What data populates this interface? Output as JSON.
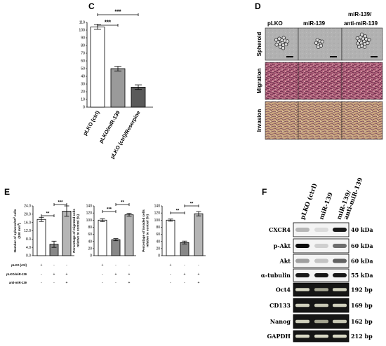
{
  "panels": {
    "C": "C",
    "D": "D",
    "E": "E",
    "F": "F"
  },
  "panel_d": {
    "columns": [
      "pLKO",
      "miR-139",
      "miR-139/",
      "anti-miR-139"
    ],
    "rows": [
      "Spheroid",
      "Migration",
      "Invasion"
    ]
  },
  "panel_e": {
    "condition_labels": [
      "pLKO (ctrl)",
      "pLKO/miR-139",
      "anti-miR-139"
    ],
    "signs": [
      [
        "+",
        "-",
        "-"
      ],
      [
        "-",
        "+",
        "+"
      ],
      [
        "-",
        "-",
        "+"
      ]
    ]
  },
  "panel_f": {
    "lanes": [
      "pLKO (ctrl)",
      "miR-139",
      "miR-139/",
      "anti-miR-139"
    ],
    "bands": [
      {
        "label": "CXCR4",
        "size": "40 kDa",
        "intensity": [
          0.25,
          0.1,
          0.9
        ],
        "gel": false
      },
      {
        "label": "p-Akt",
        "size": "60 kDa",
        "intensity": [
          0.95,
          0.15,
          0.55
        ],
        "gel": false
      },
      {
        "label": "Akt",
        "size": "60 kDa",
        "intensity": [
          0.35,
          0.2,
          0.6
        ],
        "gel": false
      },
      {
        "label": "α-tubulin",
        "size": "55 kDa",
        "intensity": [
          0.9,
          0.9,
          0.9
        ],
        "gel": false
      },
      {
        "label": "Oct4",
        "size": "192 bp",
        "intensity": [
          0.9,
          0.55,
          0.85
        ],
        "gel": true
      },
      {
        "label": "CD133",
        "size": "169 bp",
        "intensity": [
          0.85,
          0.8,
          0.85
        ],
        "gel": true
      },
      {
        "label": "Nanog",
        "size": "162 bp",
        "intensity": [
          0.85,
          0.55,
          0.8
        ],
        "gel": true
      },
      {
        "label": "GAPDH",
        "size": "212 bp",
        "intensity": [
          0.9,
          0.9,
          0.9
        ],
        "gel": true
      }
    ]
  },
  "chart_data": [
    {
      "type": "bar",
      "panel": "C",
      "categories": [
        "pLKO (ctrl)",
        "pLKO/miR-139",
        "pLKO (ctrl)/Reserpine"
      ],
      "values": [
        104,
        50,
        26
      ],
      "errors": [
        3,
        3,
        3
      ],
      "colors": [
        "#ffffff",
        "#9a9a9a",
        "#5a5a5a"
      ],
      "ylim": [
        0,
        110
      ],
      "yticks": [
        "0",
        "10",
        "20",
        "30",
        "40",
        "50",
        "60",
        "70",
        "80",
        "90",
        "100",
        "110"
      ],
      "significance": [
        {
          "from": 0,
          "to": 1,
          "label": "***"
        },
        {
          "from": 0,
          "to": 2,
          "label": "***"
        }
      ]
    },
    {
      "type": "bar",
      "panel": "E1",
      "ylabel": [
        "Number of spheres/10",
        "cells",
        "(100 mm",
        ")"
      ],
      "ylabel_superscripts": [
        "3",
        "3"
      ],
      "values": [
        17.5,
        5.5,
        21.5
      ],
      "errors": [
        1.0,
        1.5,
        2.5
      ],
      "colors": [
        "#ffffff",
        "#888888",
        "#b5b5b5"
      ],
      "ylim": [
        0,
        24
      ],
      "yticks": [
        "0.0",
        "4.0",
        "8.0",
        "12.0",
        "16.0",
        "20.0",
        "24.0"
      ],
      "significance": [
        {
          "from": 0,
          "to": 1,
          "label": "**"
        },
        {
          "from": 1,
          "to": 2,
          "label": "***"
        }
      ]
    },
    {
      "type": "bar",
      "panel": "E2",
      "ylabel": [
        "Percentage of migrated cells",
        "relative to control (%)"
      ],
      "values": [
        100,
        45,
        115
      ],
      "errors": [
        4,
        3,
        4
      ],
      "colors": [
        "#ffffff",
        "#888888",
        "#b5b5b5"
      ],
      "ylim": [
        0,
        140
      ],
      "yticks": [
        "0",
        "20",
        "40",
        "60",
        "80",
        "100",
        "120",
        "140"
      ],
      "significance": [
        {
          "from": 0,
          "to": 1,
          "label": "***"
        },
        {
          "from": 1,
          "to": 2,
          "label": "**"
        }
      ]
    },
    {
      "type": "bar",
      "panel": "E3",
      "ylabel": [
        "Percentage of invaded cells",
        "relative to control (%)"
      ],
      "values": [
        100,
        37,
        118
      ],
      "errors": [
        3,
        4,
        6
      ],
      "colors": [
        "#ffffff",
        "#888888",
        "#b5b5b5"
      ],
      "ylim": [
        0,
        140
      ],
      "yticks": [
        "0",
        "20",
        "40",
        "60",
        "80",
        "100",
        "120",
        "140"
      ],
      "significance": [
        {
          "from": 0,
          "to": 1,
          "label": "**"
        },
        {
          "from": 1,
          "to": 2,
          "label": "**"
        }
      ]
    }
  ]
}
